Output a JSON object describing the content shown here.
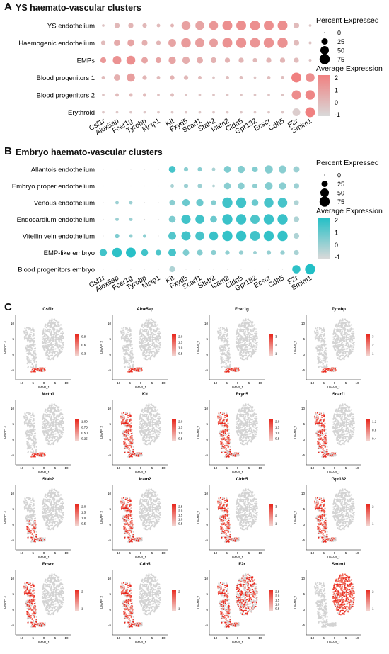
{
  "panelA": {
    "letter": "A",
    "title": "YS haemato-vascular clusters",
    "legend": {
      "size_title": "Percent Expressed",
      "color_title": "Average Expression",
      "size_values": [
        "0",
        "25",
        "50",
        "75"
      ],
      "color_values": [
        "2",
        "1",
        "0",
        "-1"
      ]
    },
    "accent": "#f08080",
    "low": "#d9d9d9"
  },
  "panelB": {
    "letter": "B",
    "title": "Embryo haemato-vascular clusters",
    "legend": {
      "size_title": "Percent Expressed",
      "color_title": "Average Expression",
      "size_values": [
        "0",
        "25",
        "50",
        "75"
      ],
      "color_values": [
        "2",
        "1",
        "0",
        "-1"
      ]
    },
    "accent": "#22bfc6",
    "low": "#d9d9d9"
  },
  "panelC": {
    "letter": "C",
    "axis_x": "UMAP_1",
    "axis_y": "UMAP_2",
    "x_ticks": [
      "-10",
      "-5",
      "0",
      "5",
      "10"
    ],
    "y_ticks": [
      "10",
      "5",
      "0",
      "-5"
    ],
    "genes": [
      {
        "name": "Csf1r",
        "legend": [
          "0.9",
          "0.6",
          "0.3"
        ],
        "pattern": "tail"
      },
      {
        "name": "Alox5ap",
        "legend": [
          "2.0",
          "1.5",
          "1.0",
          "0.5"
        ],
        "pattern": "tail"
      },
      {
        "name": "Fcer1g",
        "legend": [
          "3",
          "2",
          "1"
        ],
        "pattern": "tail"
      },
      {
        "name": "Tyrobp",
        "legend": [
          "3",
          "2",
          "1"
        ],
        "pattern": "tail"
      },
      {
        "name": "Mctp1",
        "legend": [
          "1.00",
          "0.75",
          "0.50",
          "0.25"
        ],
        "pattern": "tail"
      },
      {
        "name": "Kit",
        "legend": [
          "2.0",
          "1.5",
          "1.0",
          "0.5"
        ],
        "pattern": "left"
      },
      {
        "name": "Fxyd5",
        "legend": [
          "2.0",
          "1.5",
          "1.0",
          "0.5"
        ],
        "pattern": "left"
      },
      {
        "name": "Scarf1",
        "legend": [
          "1.2",
          "0.8",
          "0.4"
        ],
        "pattern": "left"
      },
      {
        "name": "Stab2",
        "legend": [
          "2.0",
          "1.5",
          "1.0",
          "0.5"
        ],
        "pattern": "leftlow"
      },
      {
        "name": "Icam2",
        "legend": [
          "2.5",
          "2.0",
          "1.5",
          "1.0",
          "0.5"
        ],
        "pattern": "left"
      },
      {
        "name": "Cldn5",
        "legend": [
          "3",
          "2",
          "1"
        ],
        "pattern": "left"
      },
      {
        "name": "Gpr182",
        "legend": [
          "2",
          "1"
        ],
        "pattern": "left"
      },
      {
        "name": "Ecscr",
        "legend": [
          "2",
          "1"
        ],
        "pattern": "left"
      },
      {
        "name": "Cdh5",
        "legend": [
          "2",
          "1"
        ],
        "pattern": "left"
      },
      {
        "name": "F2r",
        "legend": [
          "2.5",
          "2.0",
          "1.5",
          "1.0",
          "0.5"
        ],
        "pattern": "all"
      },
      {
        "name": "Smim1",
        "legend": [
          "2",
          "1"
        ],
        "pattern": "right"
      }
    ]
  },
  "chart_data": [
    {
      "type": "scatter",
      "subtype": "dotplot",
      "title": "YS haemato-vascular clusters",
      "categories": [
        "Csf1r",
        "Alox5ap",
        "Fcer1g",
        "Tyrobp",
        "Mctp1",
        "Kit",
        "Fxyd5",
        "Scarf1",
        "Stab2",
        "Icam2",
        "Cldn5",
        "Gpr182",
        "Ecscr",
        "Cdh5",
        "F2r",
        "Smim1"
      ],
      "rows": [
        "YS endothelium",
        "Haemogenic endothelium",
        "EMPs",
        "Blood progenitors 1",
        "Blood progenitors 2",
        "Erythroid"
      ],
      "series": [
        {
          "name": "YS endothelium",
          "percent": [
            2,
            15,
            15,
            10,
            5,
            5,
            55,
            55,
            55,
            70,
            70,
            70,
            70,
            70,
            20,
            2
          ],
          "avg_expression": [
            -0.3,
            0.1,
            0.2,
            0.1,
            0,
            0.2,
            0.9,
            0.8,
            1.2,
            1.5,
            1.5,
            1.5,
            1.5,
            1.5,
            0,
            -0.4
          ]
        },
        {
          "name": "Haemogenic endothelium",
          "percent": [
            10,
            25,
            30,
            20,
            10,
            40,
            65,
            60,
            50,
            70,
            75,
            70,
            75,
            75,
            20,
            3
          ],
          "avg_expression": [
            0,
            0.6,
            0.8,
            0.4,
            0.2,
            0.8,
            1.1,
            1.0,
            1.0,
            1.4,
            1.4,
            1.3,
            1.4,
            1.4,
            0,
            -0.3
          ]
        },
        {
          "name": "EMPs",
          "percent": [
            20,
            50,
            55,
            25,
            20,
            35,
            35,
            25,
            20,
            15,
            15,
            10,
            15,
            15,
            15,
            3
          ],
          "avg_expression": [
            1.2,
            1.4,
            1.5,
            0.8,
            0.8,
            0.8,
            0.5,
            0.5,
            0.3,
            0.3,
            0.2,
            0.1,
            0.2,
            0.2,
            0,
            -0.3
          ]
        },
        {
          "name": "Blood progenitors 1",
          "percent": [
            5,
            25,
            45,
            10,
            5,
            10,
            10,
            5,
            2,
            5,
            5,
            2,
            5,
            5,
            70,
            55
          ],
          "avg_expression": [
            0,
            0.4,
            1.0,
            0.2,
            0,
            0.3,
            0.1,
            0,
            -0.3,
            -0.1,
            -0.1,
            -0.3,
            -0.1,
            -0.1,
            2.0,
            1.5
          ]
        },
        {
          "name": "Blood progenitors 2",
          "percent": [
            2,
            5,
            5,
            5,
            2,
            5,
            2,
            2,
            2,
            2,
            2,
            2,
            2,
            2,
            60,
            65
          ],
          "avg_expression": [
            -0.3,
            0,
            0,
            0,
            -0.2,
            -0.1,
            -0.3,
            -0.3,
            -0.3,
            -0.3,
            -0.3,
            -0.3,
            -0.3,
            -0.3,
            1.6,
            1.8
          ]
        },
        {
          "name": "Erythroid",
          "percent": [
            2,
            2,
            2,
            2,
            2,
            2,
            2,
            2,
            2,
            2,
            2,
            2,
            2,
            2,
            40,
            70
          ],
          "avg_expression": [
            -0.4,
            -0.4,
            -0.4,
            -0.4,
            -0.4,
            -0.4,
            -0.4,
            -0.4,
            -0.4,
            -0.4,
            -0.4,
            -0.4,
            -0.4,
            -0.4,
            -0.6,
            2.0
          ]
        }
      ],
      "size_legend": [
        0,
        25,
        50,
        75
      ],
      "color_range": [
        -1,
        2
      ]
    },
    {
      "type": "scatter",
      "subtype": "dotplot",
      "title": "Embryo haemato-vascular clusters",
      "categories": [
        "Csf1r",
        "Alox5ap",
        "Fcer1g",
        "Tyrobp",
        "Mctp1",
        "Kit",
        "Fxyd5",
        "Scarf1",
        "Stab2",
        "Icam2",
        "Cldn5",
        "Gpr182",
        "Ecscr",
        "Cdh5",
        "F2r",
        "Smim1"
      ],
      "rows": [
        "Allantois endothelium",
        "Embryo proper endothelium",
        "Venous endothelium",
        "Endocardium endothelium",
        "Vitellin vein endothelium",
        "EMP-like embryo",
        "Blood progenitors embryo"
      ],
      "series": [
        {
          "name": "Allantois endothelium",
          "percent": [
            0,
            0,
            0,
            0,
            0,
            30,
            10,
            10,
            5,
            30,
            35,
            20,
            45,
            40,
            25,
            0
          ],
          "avg_expression": [
            -1,
            -1,
            -1,
            -1,
            -1,
            1.4,
            0.3,
            0.3,
            -0.2,
            0.5,
            0.4,
            0.4,
            0.4,
            0.3,
            0,
            -1
          ]
        },
        {
          "name": "Embryo proper endothelium",
          "percent": [
            0,
            0,
            0,
            0,
            0,
            5,
            10,
            10,
            2,
            30,
            30,
            15,
            40,
            35,
            20,
            0
          ],
          "avg_expression": [
            -1,
            -1,
            -1,
            -1,
            -1,
            -0.2,
            0,
            0,
            -0.4,
            0.3,
            0.3,
            0.2,
            0.4,
            0.3,
            0,
            -1
          ]
        },
        {
          "name": "Venous endothelium",
          "percent": [
            0,
            5,
            5,
            0,
            0,
            20,
            35,
            35,
            15,
            75,
            75,
            30,
            65,
            65,
            15,
            0
          ],
          "avg_expression": [
            -1,
            0,
            0,
            -1,
            -1,
            0.3,
            0.8,
            0.8,
            0.4,
            1.5,
            1.5,
            0.8,
            1.4,
            1.4,
            -0.3,
            -1
          ]
        },
        {
          "name": "Endocardium endothelium",
          "percent": [
            0,
            5,
            5,
            0,
            0,
            30,
            60,
            55,
            30,
            75,
            75,
            60,
            75,
            75,
            20,
            0
          ],
          "avg_expression": [
            -1,
            0,
            0,
            -1,
            -1,
            0.5,
            1.5,
            1.5,
            0.8,
            1.6,
            1.6,
            1.3,
            1.6,
            1.6,
            -0.3,
            -1
          ]
        },
        {
          "name": "Vitellin vein endothelium",
          "percent": [
            0,
            10,
            5,
            5,
            0,
            40,
            60,
            55,
            55,
            75,
            75,
            70,
            75,
            75,
            20,
            0
          ],
          "avg_expression": [
            -1,
            0.5,
            0.2,
            0.3,
            -1,
            1.2,
            1.5,
            1.4,
            1.6,
            1.7,
            1.7,
            1.5,
            1.7,
            1.7,
            -0.3,
            -1
          ]
        },
        {
          "name": "EMP-like embryo",
          "percent": [
            35,
            65,
            70,
            30,
            20,
            40,
            25,
            20,
            15,
            10,
            10,
            5,
            10,
            10,
            15,
            0
          ],
          "avg_expression": [
            1.5,
            1.8,
            1.9,
            1.5,
            1.3,
            1.4,
            0.5,
            0.4,
            0.3,
            0.2,
            0.1,
            0,
            0.1,
            0.1,
            -0.2,
            -1
          ]
        },
        {
          "name": "Blood progenitors embryo",
          "percent": [
            0,
            0,
            0,
            0,
            0,
            20,
            0,
            0,
            0,
            0,
            0,
            0,
            0,
            0,
            45,
            75
          ],
          "avg_expression": [
            -1,
            -1,
            -1,
            -1,
            -1,
            -0.3,
            -1,
            -1,
            -1,
            -1,
            -1,
            -1,
            -1,
            -1,
            1.8,
            2.0
          ]
        }
      ],
      "size_legend": [
        0,
        25,
        50,
        75
      ],
      "color_range": [
        -1,
        2
      ]
    }
  ]
}
